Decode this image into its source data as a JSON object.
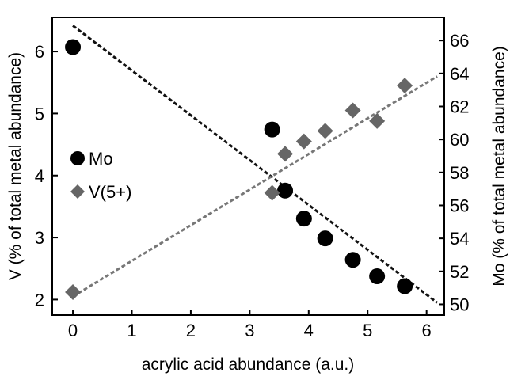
{
  "chart_data": {
    "type": "scatter",
    "xlabel": "acrylic acid abundance (a.u.)",
    "ylabel_left": "V (% of total metal abundance)",
    "ylabel_right": "Mo (% of total metal abundance)",
    "xlim": [
      -0.35,
      6.3
    ],
    "xticks": [
      0,
      1,
      2,
      3,
      4,
      5,
      6
    ],
    "ylim_left": [
      1.75,
      6.55
    ],
    "yticks_left": [
      2,
      3,
      4,
      5,
      6
    ],
    "ylim_right": [
      49.35,
      67.4
    ],
    "yticks_right": [
      50,
      52,
      54,
      56,
      58,
      60,
      62,
      64,
      66
    ],
    "legend_position": "center-left",
    "series": [
      {
        "name": "Mo",
        "axis": "right",
        "marker": "circle",
        "color": "#000000",
        "points": [
          [
            0.0,
            65.6
          ],
          [
            3.38,
            60.6
          ],
          [
            3.6,
            56.9
          ],
          [
            3.92,
            55.2
          ],
          [
            4.28,
            54.0
          ],
          [
            4.75,
            52.7
          ],
          [
            5.16,
            51.7
          ],
          [
            5.63,
            51.1
          ]
        ],
        "fit": [
          [
            0.0,
            66.9
          ],
          [
            6.18,
            50.1
          ]
        ]
      },
      {
        "name": "V(5+)",
        "axis": "left",
        "marker": "diamond",
        "color": "#666666",
        "points": [
          [
            0.0,
            2.12
          ],
          [
            3.38,
            3.72
          ],
          [
            3.6,
            4.35
          ],
          [
            3.92,
            4.55
          ],
          [
            4.28,
            4.72
          ],
          [
            4.75,
            5.05
          ],
          [
            5.16,
            4.88
          ],
          [
            5.63,
            5.45
          ]
        ],
        "fit": [
          [
            0.0,
            2.05
          ],
          [
            6.18,
            5.6
          ]
        ]
      }
    ]
  }
}
